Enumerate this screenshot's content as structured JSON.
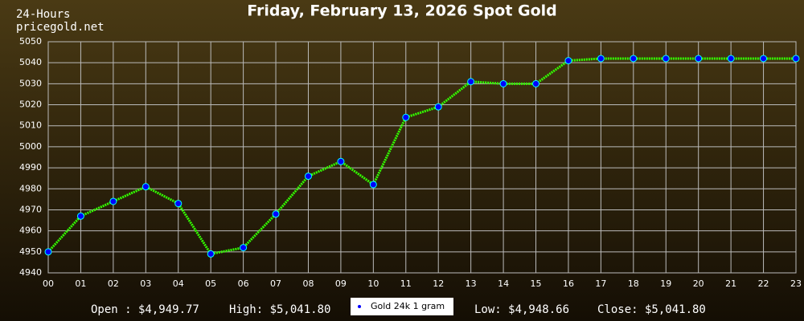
{
  "chart_data": {
    "type": "line",
    "title": "Friday, February 13, 2026 Spot Gold",
    "top_left": [
      "24-Hours",
      "pricegold.net"
    ],
    "categories": [
      "00",
      "01",
      "02",
      "03",
      "04",
      "05",
      "06",
      "07",
      "08",
      "09",
      "10",
      "11",
      "12",
      "13",
      "14",
      "15",
      "16",
      "17",
      "18",
      "19",
      "20",
      "21",
      "22",
      "23"
    ],
    "series": [
      {
        "name": "Gold 24k 1 gram",
        "color": "#33ff00",
        "marker_color": "#0000ff",
        "values": [
          4950,
          4967,
          4974,
          4981,
          4973,
          4949,
          4952,
          4968,
          4986,
          4993,
          4982,
          5014,
          5019,
          5031,
          5030,
          5030,
          5041,
          5042,
          5042,
          5042,
          5042,
          5042,
          5042,
          5042
        ]
      }
    ],
    "ylim": [
      4940,
      5050
    ],
    "yticks": [
      4940,
      4950,
      4960,
      4970,
      4980,
      4990,
      5000,
      5010,
      5020,
      5030,
      5040,
      5050
    ],
    "grid": true,
    "stats": [
      "Open : $4,949.77",
      "High: $5,041.80",
      "Low: $4,948.66",
      "Close: $5,041.80"
    ]
  }
}
